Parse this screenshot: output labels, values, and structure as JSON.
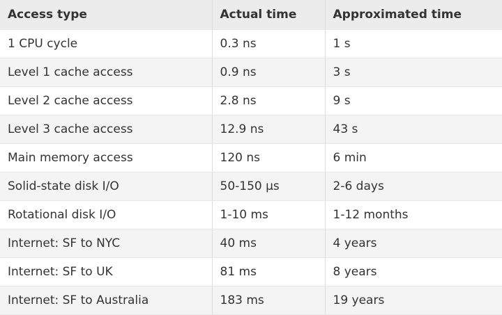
{
  "table": {
    "headers": [
      "Access type",
      "Actual time",
      "Approximated time"
    ],
    "rows": [
      [
        "1 CPU cycle",
        "0.3 ns",
        "1 s"
      ],
      [
        "Level 1 cache access",
        "0.9 ns",
        "3 s"
      ],
      [
        "Level 2 cache access",
        "2.8 ns",
        "9 s"
      ],
      [
        "Level 3 cache access",
        "12.9 ns",
        "43 s"
      ],
      [
        "Main memory access",
        "120 ns",
        "6 min"
      ],
      [
        "Solid-state disk I/O",
        "50-150 μs",
        "2-6 days"
      ],
      [
        "Rotational disk I/O",
        "1-10 ms",
        "1-12 months"
      ],
      [
        "Internet: SF to NYC",
        "40 ms",
        "4 years"
      ],
      [
        "Internet: SF to UK",
        "81 ms",
        "8 years"
      ],
      [
        "Internet: SF to Australia",
        "183 ms",
        "19 years"
      ]
    ]
  }
}
